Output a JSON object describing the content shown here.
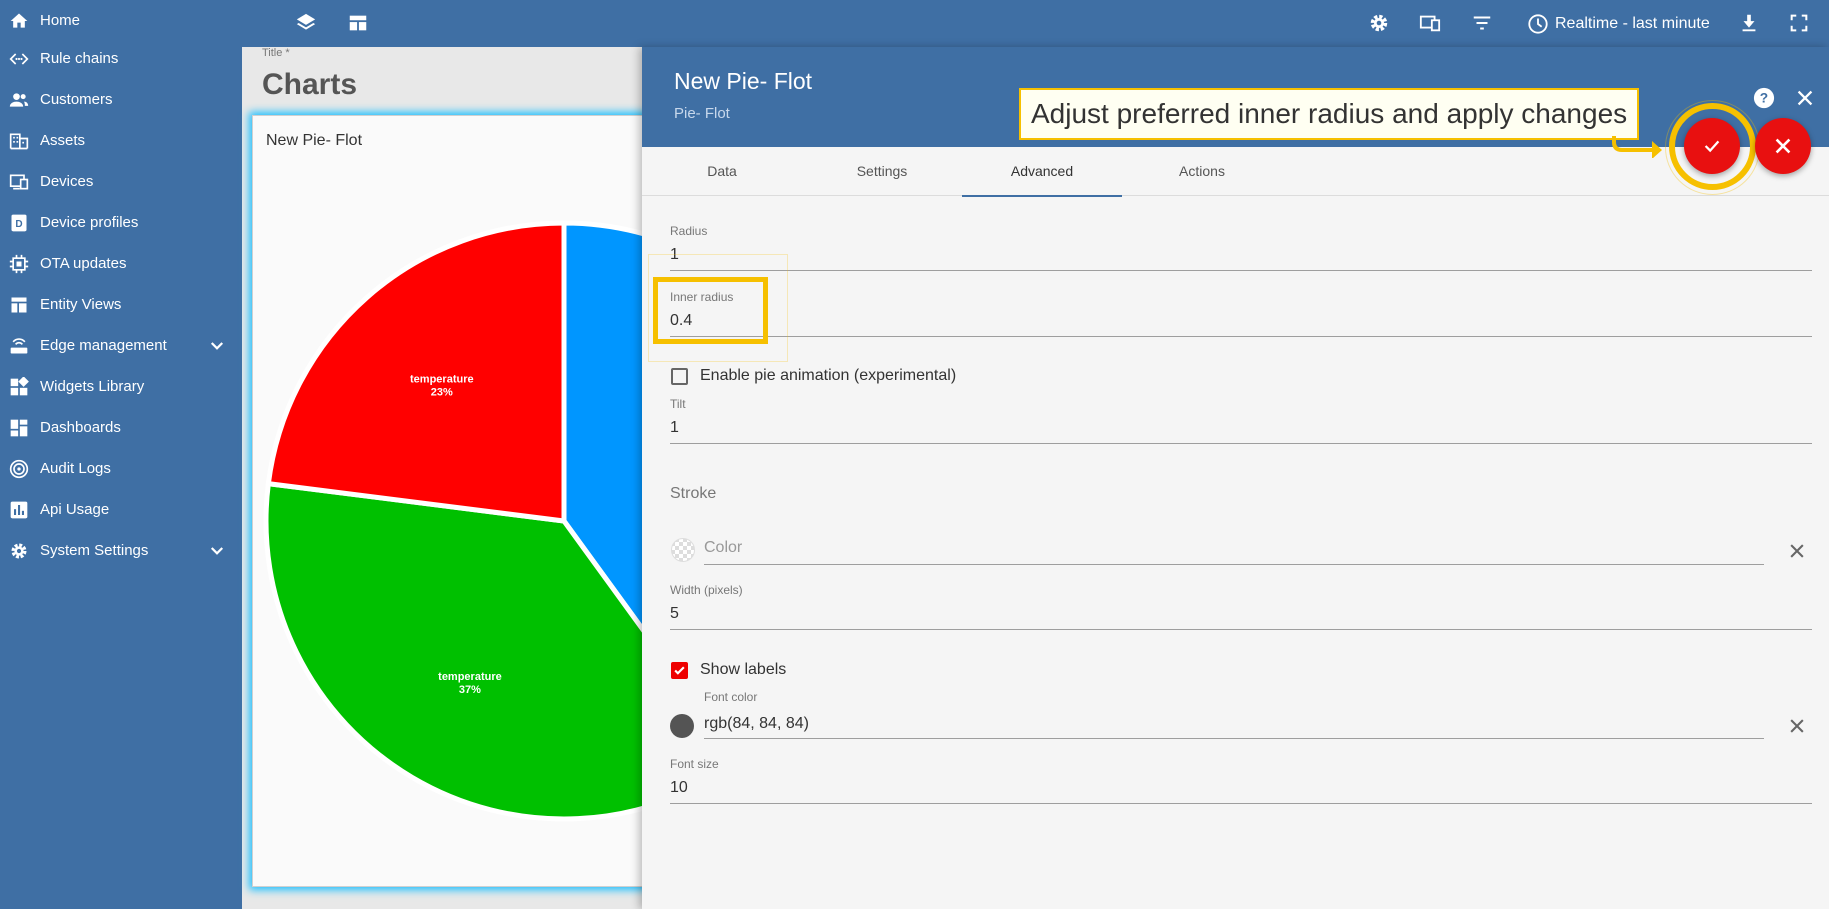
{
  "sidebar": {
    "items": [
      {
        "label": "Home",
        "icon": "home-icon"
      },
      {
        "label": "Rule chains",
        "icon": "rule-chains-icon"
      },
      {
        "label": "Customers",
        "icon": "customers-icon"
      },
      {
        "label": "Assets",
        "icon": "assets-icon"
      },
      {
        "label": "Devices",
        "icon": "devices-icon"
      },
      {
        "label": "Device profiles",
        "icon": "device-profiles-icon"
      },
      {
        "label": "OTA updates",
        "icon": "ota-updates-icon"
      },
      {
        "label": "Entity Views",
        "icon": "entity-views-icon"
      },
      {
        "label": "Edge management",
        "icon": "edge-management-icon",
        "expandable": true
      },
      {
        "label": "Widgets Library",
        "icon": "widgets-library-icon"
      },
      {
        "label": "Dashboards",
        "icon": "dashboards-icon"
      },
      {
        "label": "Audit Logs",
        "icon": "audit-logs-icon"
      },
      {
        "label": "Api Usage",
        "icon": "api-usage-icon"
      },
      {
        "label": "System Settings",
        "icon": "system-settings-icon",
        "expandable": true
      }
    ]
  },
  "topbar": {
    "realtime_label": "Realtime - last minute"
  },
  "dashboard": {
    "title_label": "Title *",
    "title": "Charts",
    "widget_title": "New Pie- Flot"
  },
  "chart_data": {
    "type": "pie",
    "slices": [
      {
        "label": "temperature",
        "percent_label": "23%",
        "value": 23,
        "color": "#ff0000"
      },
      {
        "label": "temperature",
        "percent_label": "37%",
        "value": 37,
        "color": "#00c000"
      },
      {
        "label": "",
        "percent_label": "",
        "value": 40,
        "color": "#0096ff"
      }
    ]
  },
  "panel": {
    "title": "New Pie- Flot",
    "subtitle": "Pie- Flot",
    "tabs": [
      "Data",
      "Settings",
      "Advanced",
      "Actions"
    ],
    "active_tab": "Advanced",
    "fields": {
      "radius": {
        "label": "Radius",
        "value": "1"
      },
      "inner_radius": {
        "label": "Inner radius",
        "value": "0.4"
      },
      "pie_animation": {
        "label": "Enable pie animation (experimental)",
        "checked": false
      },
      "tilt": {
        "label": "Tilt",
        "value": "1"
      },
      "stroke_section": "Stroke",
      "stroke_color": {
        "placeholder": "Color"
      },
      "stroke_width": {
        "label": "Width (pixels)",
        "value": "5"
      },
      "show_labels": {
        "label": "Show labels",
        "checked": true
      },
      "font_color": {
        "label": "Font color",
        "value": "rgb(84, 84, 84)"
      },
      "font_size": {
        "label": "Font size",
        "value": "10"
      }
    }
  },
  "callout": {
    "text": "Adjust preferred inner radius and apply changes"
  },
  "colors": {
    "primary": "#3f6fa4",
    "accent_red": "#e81010",
    "highlight": "#f6c000"
  }
}
